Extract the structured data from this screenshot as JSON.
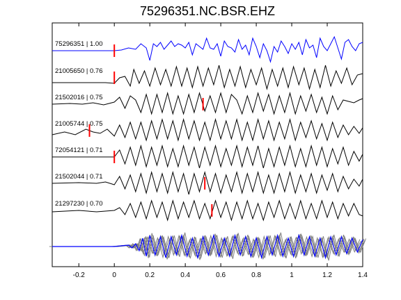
{
  "chart_data": {
    "type": "line",
    "title": "75296351.NC.BSR.EHZ",
    "xlabel": "",
    "ylabel": "",
    "xlim": [
      -0.35,
      1.4
    ],
    "xticks": [
      -0.2,
      0,
      0.2,
      0.4,
      0.6,
      0.8,
      1,
      1.2,
      1.4
    ],
    "xtick_labels": [
      "-0.2",
      "0",
      "0.2",
      "0.4",
      "0.6",
      "0.8",
      "1",
      "1.2",
      "1.4"
    ],
    "grid": false,
    "legend": "none",
    "colors": {
      "reference": "#0000ff",
      "trace": "#000000",
      "stack": "#808080",
      "pick": "#ff0000",
      "frame": "#000000"
    },
    "series": [
      {
        "label": "75296351 | 1.00",
        "color": "#0000ff",
        "pick_time": 0.0,
        "x": [
          -0.35,
          -0.05,
          0.0,
          0.04,
          0.08,
          0.12,
          0.15,
          0.18,
          0.2,
          0.22,
          0.24,
          0.26,
          0.28,
          0.3,
          0.32,
          0.34,
          0.36,
          0.38,
          0.4,
          0.42,
          0.44,
          0.46,
          0.48,
          0.5,
          0.52,
          0.54,
          0.56,
          0.58,
          0.6,
          0.62,
          0.64,
          0.66,
          0.68,
          0.7,
          0.72,
          0.74,
          0.76,
          0.78,
          0.8,
          0.82,
          0.84,
          0.86,
          0.88,
          0.9,
          0.92,
          0.94,
          0.96,
          0.98,
          1.0,
          1.02,
          1.04,
          1.06,
          1.08,
          1.1,
          1.12,
          1.14,
          1.16,
          1.18,
          1.2,
          1.22,
          1.24,
          1.26,
          1.28,
          1.3,
          1.32,
          1.34,
          1.36,
          1.38,
          1.4
        ],
        "y": [
          0.0,
          0.0,
          0.0,
          0.05,
          0.2,
          0.1,
          0.5,
          0.2,
          -0.7,
          0.5,
          0.3,
          0.6,
          0.1,
          0.4,
          0.7,
          0.3,
          0.5,
          0.4,
          0.2,
          0.6,
          -0.3,
          0.5,
          0.3,
          0.1,
          0.9,
          0.2,
          0.1,
          0.5,
          -0.4,
          0.7,
          0.3,
          0.2,
          -0.1,
          0.8,
          0.1,
          0.4,
          -0.3,
          0.9,
          0.3,
          -0.5,
          0.5,
          0.0,
          -0.8,
          0.3,
          -0.1,
          0.7,
          0.3,
          -0.2,
          0.5,
          0.1,
          0.6,
          -0.3,
          0.8,
          0.2,
          0.4,
          -0.5,
          0.9,
          0.3,
          0.0,
          0.5,
          1.0,
          0.2,
          -0.6,
          0.6,
          0.8,
          0.3,
          0.0,
          0.5,
          0.6
        ]
      },
      {
        "label": "21005650 | 0.76",
        "color": "#000000",
        "pick_time": 0.0,
        "x": [
          -0.35,
          -0.05,
          0.0,
          0.03,
          0.06,
          0.09,
          0.11,
          0.14,
          0.17,
          0.2,
          0.23,
          0.26,
          0.29,
          0.32,
          0.35,
          0.38,
          0.41,
          0.44,
          0.47,
          0.5,
          0.53,
          0.56,
          0.59,
          0.62,
          0.65,
          0.68,
          0.71,
          0.74,
          0.77,
          0.8,
          0.83,
          0.86,
          0.89,
          0.92,
          0.95,
          0.98,
          1.01,
          1.04,
          1.07,
          1.1,
          1.13,
          1.16,
          1.19,
          1.22,
          1.25,
          1.28,
          1.31,
          1.34,
          1.37,
          1.4
        ],
        "y": [
          -0.35,
          -0.35,
          -0.4,
          0.0,
          0.1,
          -0.6,
          0.6,
          -0.4,
          0.5,
          -0.6,
          0.7,
          -0.5,
          0.6,
          -0.6,
          0.8,
          -0.6,
          0.7,
          -0.7,
          0.8,
          -0.6,
          0.7,
          -0.5,
          0.9,
          -0.7,
          0.6,
          -0.6,
          0.8,
          -0.7,
          0.6,
          -0.5,
          0.7,
          -0.8,
          0.6,
          -0.6,
          0.7,
          -0.7,
          0.8,
          -0.5,
          0.7,
          -0.8,
          0.6,
          -0.7,
          0.9,
          -0.6,
          0.5,
          -0.4,
          0.7,
          -0.5,
          0.2,
          0.3
        ]
      },
      {
        "label": "21502016 | 0.75",
        "color": "#000000",
        "pick_time": 0.5,
        "x": [
          -0.35,
          -0.25,
          -0.18,
          -0.12,
          -0.06,
          0.0,
          0.03,
          0.06,
          0.09,
          0.12,
          0.15,
          0.18,
          0.21,
          0.24,
          0.27,
          0.3,
          0.33,
          0.36,
          0.39,
          0.42,
          0.45,
          0.48,
          0.51,
          0.54,
          0.57,
          0.6,
          0.63,
          0.66,
          0.69,
          0.72,
          0.75,
          0.78,
          0.81,
          0.84,
          0.87,
          0.9,
          0.93,
          0.96,
          0.99,
          1.02,
          1.05,
          1.08,
          1.11,
          1.14,
          1.17,
          1.2,
          1.23,
          1.26,
          1.29,
          1.32,
          1.35,
          1.38,
          1.4
        ],
        "y": [
          0.0,
          0.05,
          0.0,
          0.1,
          -0.05,
          0.15,
          0.5,
          -0.3,
          0.6,
          0.3,
          -0.6,
          0.7,
          -0.7,
          0.7,
          -0.6,
          0.8,
          -0.7,
          0.6,
          -0.7,
          0.7,
          -0.6,
          0.8,
          -0.5,
          0.6,
          -0.6,
          0.8,
          -0.6,
          0.7,
          0.3,
          -0.7,
          0.6,
          -0.6,
          0.8,
          -0.5,
          0.7,
          -0.7,
          0.6,
          -0.6,
          0.8,
          -0.7,
          0.6,
          -0.5,
          0.7,
          -0.6,
          0.5,
          -0.7,
          0.6,
          -0.4,
          0.3,
          0.2,
          0.1,
          0.3,
          0.4
        ]
      },
      {
        "label": "21005744 | 0.75",
        "color": "#000000",
        "pick_time": -0.14,
        "x": [
          -0.35,
          -0.28,
          -0.22,
          -0.16,
          -0.12,
          -0.08,
          -0.04,
          0.0,
          0.03,
          0.06,
          0.09,
          0.12,
          0.15,
          0.18,
          0.21,
          0.24,
          0.27,
          0.3,
          0.33,
          0.36,
          0.39,
          0.42,
          0.45,
          0.48,
          0.51,
          0.54,
          0.57,
          0.6,
          0.63,
          0.66,
          0.69,
          0.72,
          0.75,
          0.78,
          0.81,
          0.84,
          0.87,
          0.9,
          0.93,
          0.96,
          0.99,
          1.02,
          1.05,
          1.08,
          1.11,
          1.14,
          1.17,
          1.2,
          1.23,
          1.26,
          1.29,
          1.32,
          1.35,
          1.38,
          1.4
        ],
        "y": [
          -0.3,
          -0.1,
          -0.3,
          0.1,
          -0.1,
          -0.2,
          0.1,
          -0.4,
          0.4,
          -0.5,
          0.6,
          -0.6,
          0.6,
          -0.7,
          0.7,
          -0.6,
          0.8,
          -0.6,
          0.7,
          -0.7,
          0.8,
          -0.6,
          0.7,
          -0.7,
          0.6,
          -0.7,
          0.8,
          -0.6,
          0.7,
          -0.6,
          0.8,
          -0.7,
          0.6,
          -0.7,
          0.8,
          -0.6,
          0.7,
          -0.7,
          0.6,
          -0.6,
          0.8,
          -0.7,
          0.6,
          -0.5,
          0.7,
          -0.6,
          0.5,
          -0.7,
          0.6,
          -0.5,
          0.4,
          -0.3,
          0.3,
          -0.2,
          0.2
        ]
      },
      {
        "label": "72054121 | 0.71",
        "color": "#000000",
        "pick_time": 0.0,
        "x": [
          -0.35,
          -0.15,
          -0.05,
          0.0,
          0.03,
          0.06,
          0.09,
          0.12,
          0.15,
          0.18,
          0.21,
          0.24,
          0.27,
          0.3,
          0.33,
          0.36,
          0.39,
          0.42,
          0.45,
          0.48,
          0.51,
          0.54,
          0.57,
          0.6,
          0.63,
          0.66,
          0.69,
          0.72,
          0.75,
          0.78,
          0.81,
          0.84,
          0.87,
          0.9,
          0.93,
          0.96,
          0.99,
          1.02,
          1.05,
          1.08,
          1.11,
          1.14,
          1.17,
          1.2,
          1.23,
          1.26,
          1.29,
          1.32,
          1.35,
          1.38,
          1.4
        ],
        "y": [
          0.0,
          0.0,
          0.0,
          0.0,
          0.5,
          -0.5,
          0.7,
          -0.6,
          0.8,
          -0.7,
          0.7,
          -0.6,
          0.8,
          -0.7,
          0.6,
          -0.7,
          0.8,
          -0.6,
          0.7,
          -0.8,
          0.7,
          -0.6,
          0.8,
          -0.7,
          0.6,
          -0.6,
          0.8,
          -0.7,
          0.7,
          -0.6,
          0.8,
          -0.8,
          0.6,
          -0.7,
          0.7,
          -0.6,
          0.8,
          -0.7,
          0.6,
          -0.7,
          0.8,
          -0.6,
          0.7,
          -0.7,
          0.6,
          -0.5,
          0.7,
          -0.6,
          0.4,
          -0.3,
          0.2
        ]
      },
      {
        "label": "21502044 | 0.71",
        "color": "#000000",
        "pick_time": 0.51,
        "x": [
          -0.35,
          -0.2,
          -0.1,
          -0.05,
          0.0,
          0.03,
          0.06,
          0.09,
          0.12,
          0.15,
          0.18,
          0.21,
          0.24,
          0.27,
          0.3,
          0.33,
          0.36,
          0.39,
          0.42,
          0.45,
          0.48,
          0.51,
          0.54,
          0.57,
          0.6,
          0.63,
          0.66,
          0.69,
          0.72,
          0.75,
          0.78,
          0.81,
          0.84,
          0.87,
          0.9,
          0.93,
          0.96,
          0.99,
          1.02,
          1.05,
          1.08,
          1.11,
          1.14,
          1.17,
          1.2,
          1.23,
          1.26,
          1.29,
          1.32,
          1.35,
          1.38,
          1.4
        ],
        "y": [
          0.0,
          0.05,
          0.0,
          0.1,
          -0.1,
          0.5,
          -0.4,
          0.6,
          -0.6,
          0.7,
          -0.7,
          0.8,
          -0.6,
          0.7,
          -0.7,
          0.8,
          -0.6,
          0.7,
          -0.8,
          0.7,
          -0.6,
          0.8,
          -0.6,
          0.7,
          -0.7,
          0.6,
          -0.6,
          0.8,
          -0.7,
          0.7,
          -0.6,
          0.8,
          -0.7,
          0.6,
          -0.7,
          0.7,
          -0.6,
          0.8,
          -0.7,
          0.6,
          -0.6,
          0.7,
          -0.7,
          0.6,
          -0.5,
          0.7,
          -0.6,
          0.5,
          -0.4,
          0.3,
          -0.2,
          0.3
        ]
      },
      {
        "label": "21297230 | 0.70",
        "color": "#000000",
        "pick_time": 0.55,
        "x": [
          -0.35,
          -0.2,
          -0.1,
          0.0,
          0.03,
          0.06,
          0.09,
          0.12,
          0.15,
          0.18,
          0.21,
          0.24,
          0.27,
          0.3,
          0.33,
          0.36,
          0.39,
          0.42,
          0.45,
          0.48,
          0.51,
          0.54,
          0.57,
          0.6,
          0.63,
          0.66,
          0.69,
          0.72,
          0.75,
          0.78,
          0.81,
          0.84,
          0.87,
          0.9,
          0.93,
          0.96,
          0.99,
          1.02,
          1.05,
          1.08,
          1.11,
          1.14,
          1.17,
          1.2,
          1.23,
          1.26,
          1.29,
          1.32,
          1.35,
          1.38,
          1.4
        ],
        "y": [
          -0.1,
          0.0,
          -0.1,
          0.0,
          0.2,
          -0.3,
          0.5,
          -0.5,
          0.6,
          -0.6,
          0.7,
          -0.5,
          0.6,
          -0.7,
          0.7,
          -0.6,
          0.6,
          -0.5,
          0.7,
          -0.6,
          0.5,
          -0.6,
          0.7,
          -0.5,
          0.6,
          -0.7,
          0.6,
          -0.6,
          0.7,
          -0.6,
          0.5,
          -0.7,
          0.6,
          -0.5,
          0.7,
          -0.6,
          0.5,
          -0.6,
          0.7,
          -0.6,
          0.5,
          -0.6,
          0.7,
          -0.5,
          0.6,
          -0.6,
          0.5,
          -0.4,
          0.5,
          -0.3,
          -0.4
        ]
      }
    ],
    "stack": {
      "label": "",
      "color": "#808080",
      "reference_color": "#0000ff",
      "traces": 6,
      "x": [
        -0.35,
        -0.05,
        0.0,
        0.04,
        0.08,
        0.1,
        0.12,
        0.14,
        0.16,
        0.18,
        0.2,
        0.23,
        0.26,
        0.29,
        0.32,
        0.35,
        0.38,
        0.41,
        0.44,
        0.47,
        0.5,
        0.53,
        0.56,
        0.59,
        0.62,
        0.65,
        0.68,
        0.71,
        0.74,
        0.77,
        0.8,
        0.83,
        0.86,
        0.89,
        0.92,
        0.95,
        0.98,
        1.01,
        1.04,
        1.07,
        1.1,
        1.13,
        1.16,
        1.19,
        1.22,
        1.25,
        1.28,
        1.31,
        1.34,
        1.37,
        1.4
      ],
      "y": [
        0.0,
        0.0,
        0.0,
        0.05,
        0.1,
        -0.1,
        0.2,
        -0.3,
        0.6,
        -0.7,
        0.8,
        -0.6,
        0.7,
        -0.8,
        0.7,
        -0.6,
        0.8,
        -0.7,
        0.6,
        -0.8,
        0.7,
        -0.6,
        0.8,
        -0.7,
        0.6,
        -0.7,
        0.8,
        -0.6,
        0.7,
        -0.7,
        0.6,
        -0.8,
        0.7,
        -0.6,
        0.8,
        -0.7,
        0.6,
        -0.7,
        0.8,
        -0.6,
        0.7,
        -0.7,
        0.6,
        -0.8,
        0.7,
        -0.6,
        0.7,
        -0.5,
        0.6,
        -0.4,
        0.5
      ]
    }
  }
}
